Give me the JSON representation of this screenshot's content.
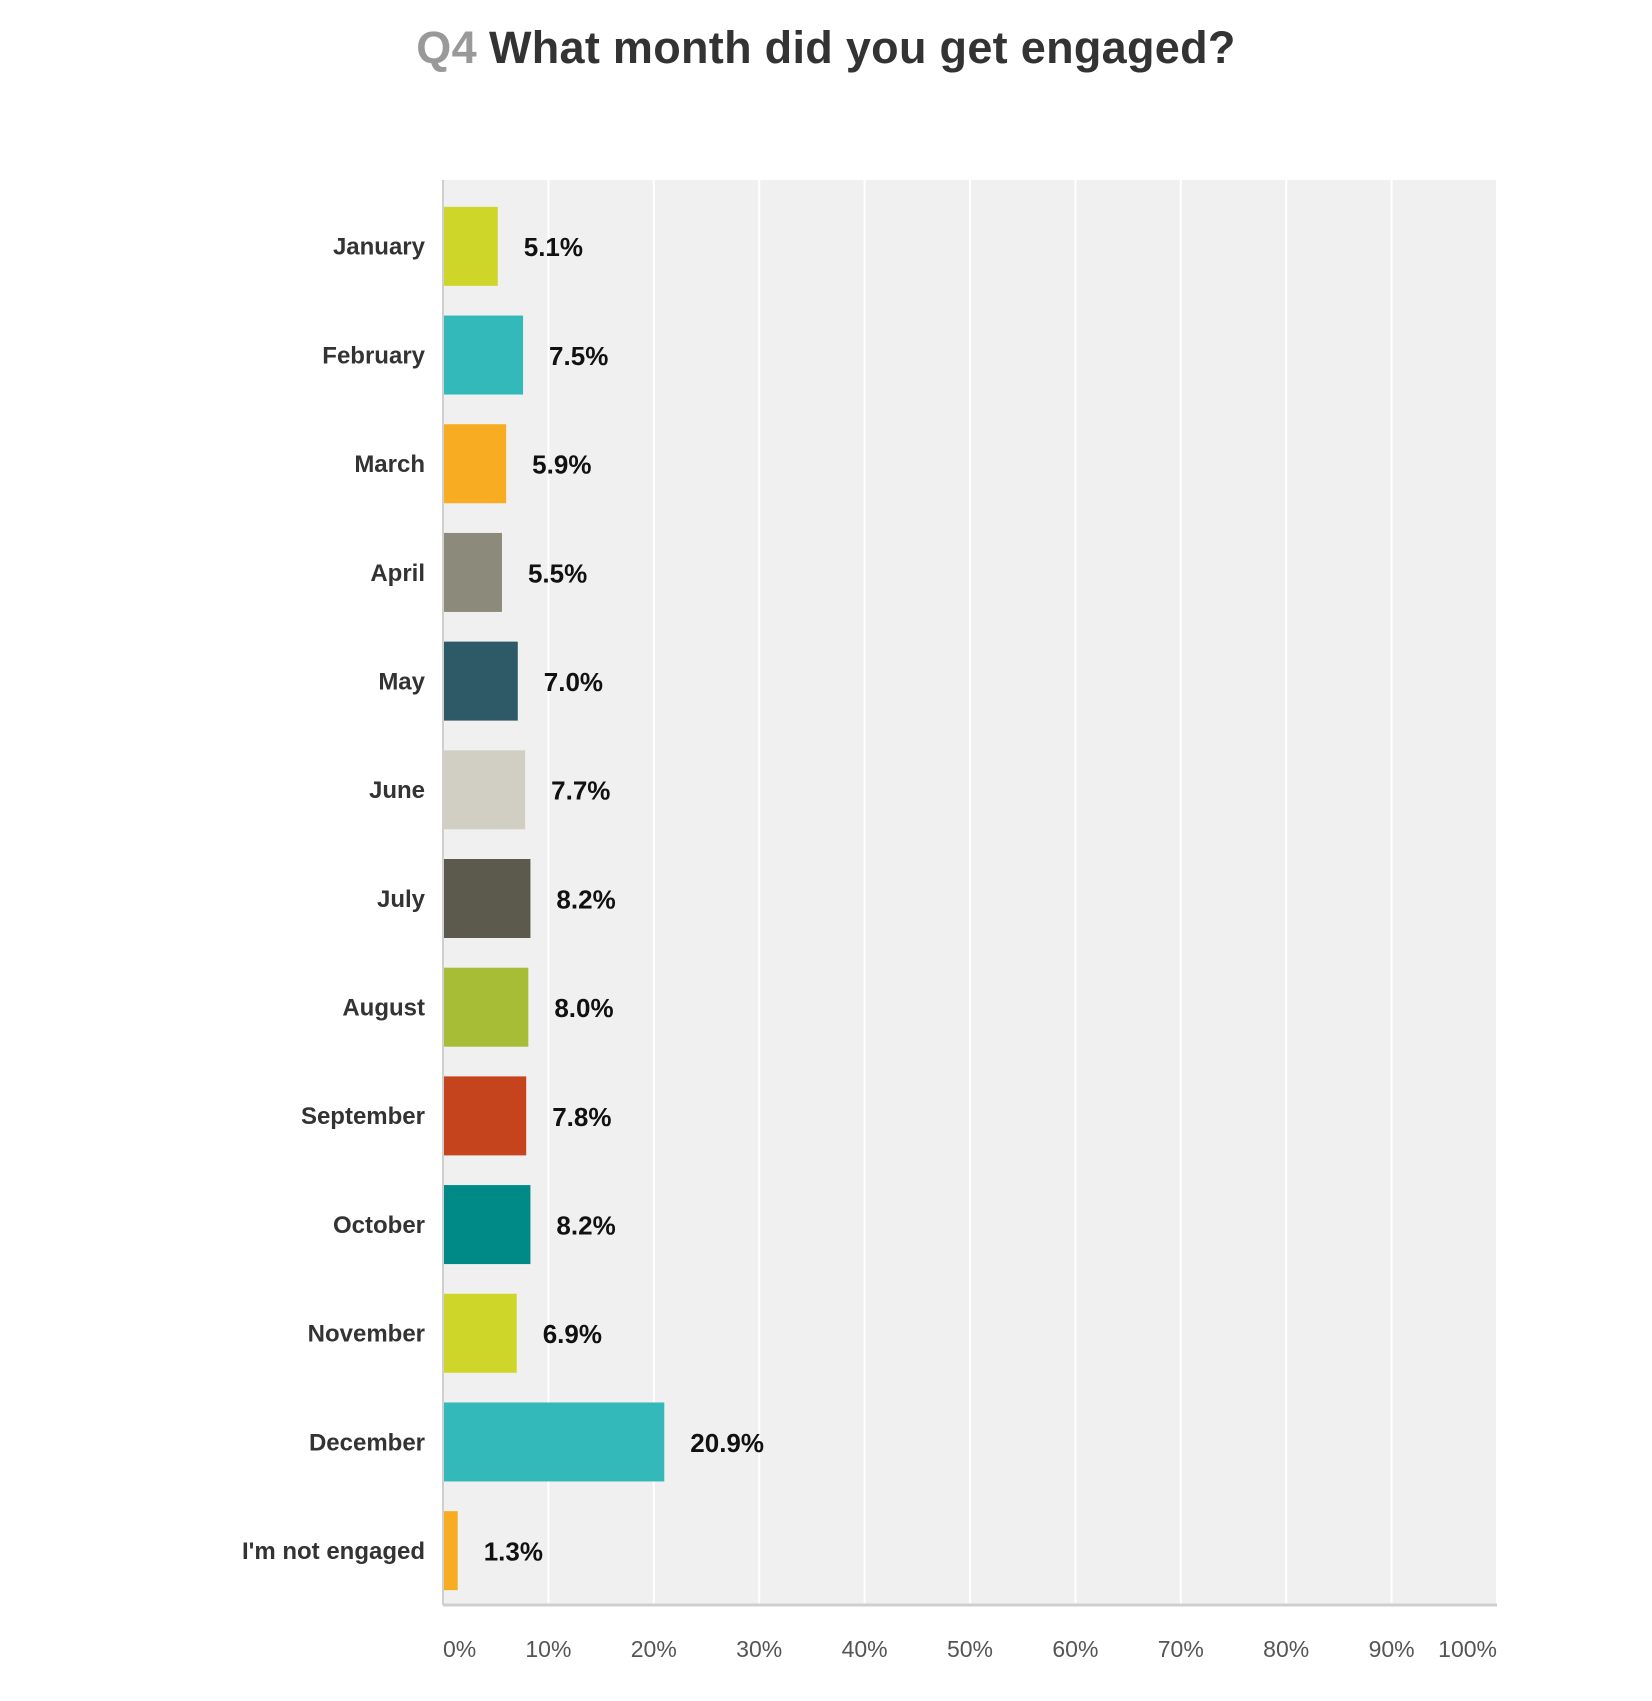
{
  "chart_data": {
    "type": "bar",
    "orientation": "horizontal",
    "title_prefix": "Q4",
    "title": "What month did you get engaged?",
    "categories": [
      "January",
      "February",
      "March",
      "April",
      "May",
      "June",
      "July",
      "August",
      "September",
      "October",
      "November",
      "December",
      "I'm not engaged"
    ],
    "values": [
      5.1,
      7.5,
      5.9,
      5.5,
      7.0,
      7.7,
      8.2,
      8.0,
      7.8,
      8.2,
      6.9,
      20.9,
      1.3
    ],
    "value_labels": [
      "5.1%",
      "7.5%",
      "5.9%",
      "5.5%",
      "7.0%",
      "7.7%",
      "8.2%",
      "8.0%",
      "7.8%",
      "8.2%",
      "6.9%",
      "20.9%",
      "1.3%"
    ],
    "colors": [
      "#cfd62a",
      "#34b9bb",
      "#f8ac22",
      "#8c8a7a",
      "#2e5a68",
      "#d1cfc4",
      "#5c5a4c",
      "#a8bd36",
      "#c6441d",
      "#008a87",
      "#cfd62a",
      "#34b9bb",
      "#f8ac22"
    ],
    "x_ticks": [
      "0%",
      "10%",
      "20%",
      "30%",
      "40%",
      "50%",
      "60%",
      "70%",
      "80%",
      "90%",
      "100%"
    ],
    "xlim": [
      0,
      100
    ],
    "xlabel": "",
    "ylabel": "",
    "grid": true,
    "plot_background": "#f0f0f0",
    "grid_color": "#ffffff"
  }
}
